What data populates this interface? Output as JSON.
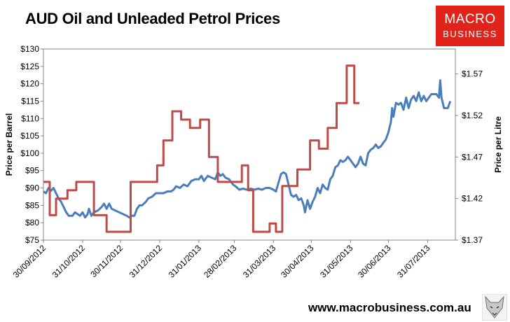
{
  "page": {
    "title": "AUD Oil and Unleaded Petrol Prices",
    "logo_line1": "MACRO",
    "logo_line2": "BUSINESS",
    "url": "www.macrobusiness.com.au"
  },
  "chart_data": {
    "type": "line",
    "title": "AUD Oil and Unleaded Petrol Prices",
    "ylabel": "Price per Barrel",
    "y2label": "Price per Litre",
    "ylim": [
      75,
      130
    ],
    "y2lim": [
      1.37,
      1.6
    ],
    "yticks": [
      "$75",
      "$80",
      "$85",
      "$90",
      "$95",
      "$100",
      "$105",
      "$110",
      "$115",
      "$120",
      "$125",
      "$130"
    ],
    "y2ticks": [
      "$1.37",
      "$1.42",
      "$1.47",
      "$1.52",
      "$1.57"
    ],
    "xlim": [
      "2012-09-30",
      "2013-08-22"
    ],
    "xticks": [
      "30/09/2012",
      "31/10/2012",
      "30/11/2012",
      "31/12/2012",
      "31/01/2013",
      "28/02/2013",
      "31/03/2013",
      "30/04/2013",
      "31/05/2013",
      "30/06/2013",
      "31/07/2013"
    ],
    "grid": false,
    "series": [
      {
        "axis": "left",
        "color": "#4a7ebb",
        "points": [
          [
            "2012-09-30",
            89
          ],
          [
            "2012-10-02",
            88.5
          ],
          [
            "2012-10-04",
            90
          ],
          [
            "2012-10-06",
            89.2
          ],
          [
            "2012-10-08",
            90
          ],
          [
            "2012-10-10",
            88.5
          ],
          [
            "2012-10-12",
            87
          ],
          [
            "2012-10-14",
            86
          ],
          [
            "2012-10-16",
            84.5
          ],
          [
            "2012-10-18",
            83
          ],
          [
            "2012-10-20",
            82
          ],
          [
            "2012-10-23",
            82
          ],
          [
            "2012-10-25",
            83
          ],
          [
            "2012-10-27",
            82.5
          ],
          [
            "2012-10-29",
            82
          ],
          [
            "2012-10-31",
            83
          ],
          [
            "2012-11-02",
            81.5
          ],
          [
            "2012-11-04",
            82.5
          ],
          [
            "2012-11-05",
            84
          ],
          [
            "2012-11-07",
            82
          ],
          [
            "2012-11-09",
            83
          ],
          [
            "2012-11-12",
            83.5
          ],
          [
            "2012-11-15",
            84.5
          ],
          [
            "2012-11-17",
            85.5
          ],
          [
            "2012-11-19",
            84
          ],
          [
            "2012-11-21",
            85.5
          ],
          [
            "2012-11-23",
            84
          ],
          [
            "2012-11-26",
            83.5
          ],
          [
            "2012-11-29",
            83
          ],
          [
            "2012-12-02",
            82.5
          ],
          [
            "2012-12-05",
            82
          ],
          [
            "2012-12-07",
            81.5
          ],
          [
            "2012-12-09",
            82
          ],
          [
            "2012-12-11",
            82
          ],
          [
            "2012-12-13",
            84
          ],
          [
            "2012-12-15",
            85
          ],
          [
            "2012-12-17",
            85
          ],
          [
            "2012-12-20",
            86
          ],
          [
            "2012-12-22",
            87
          ],
          [
            "2012-12-25",
            87.5
          ],
          [
            "2012-12-28",
            88.5
          ],
          [
            "2012-12-31",
            88.5
          ],
          [
            "2013-01-03",
            88.5
          ],
          [
            "2013-01-06",
            89
          ],
          [
            "2013-01-09",
            89
          ],
          [
            "2013-01-11",
            89.5
          ],
          [
            "2013-01-13",
            90.5
          ],
          [
            "2013-01-16",
            90
          ],
          [
            "2013-01-19",
            91
          ],
          [
            "2013-01-22",
            90.5
          ],
          [
            "2013-01-25",
            92
          ],
          [
            "2013-01-28",
            92.5
          ],
          [
            "2013-01-31",
            92.5
          ],
          [
            "2013-02-02",
            93.5
          ],
          [
            "2013-02-04",
            92
          ],
          [
            "2013-02-07",
            93.5
          ],
          [
            "2013-02-10",
            93
          ],
          [
            "2013-02-13",
            92.5
          ],
          [
            "2013-02-15",
            94.5
          ],
          [
            "2013-02-17",
            93.5
          ],
          [
            "2013-02-19",
            94
          ],
          [
            "2013-02-21",
            93
          ],
          [
            "2013-02-24",
            92.5
          ],
          [
            "2013-02-27",
            91
          ],
          [
            "2013-03-01",
            90.5
          ],
          [
            "2013-03-04",
            89.5
          ],
          [
            "2013-03-07",
            89.8
          ],
          [
            "2013-03-10",
            89.5
          ],
          [
            "2013-03-13",
            89.8
          ],
          [
            "2013-03-16",
            89.5
          ],
          [
            "2013-03-19",
            89.8
          ],
          [
            "2013-03-22",
            89.5
          ],
          [
            "2013-03-25",
            90
          ],
          [
            "2013-03-28",
            90
          ],
          [
            "2013-03-31",
            89.5
          ],
          [
            "2013-04-02",
            89
          ],
          [
            "2013-04-04",
            91.5
          ],
          [
            "2013-04-06",
            94
          ],
          [
            "2013-04-08",
            94.5
          ],
          [
            "2013-04-10",
            94
          ],
          [
            "2013-04-12",
            91
          ],
          [
            "2013-04-14",
            88
          ],
          [
            "2013-04-16",
            87.5
          ],
          [
            "2013-04-18",
            88
          ],
          [
            "2013-04-20",
            86.5
          ],
          [
            "2013-04-22",
            87
          ],
          [
            "2013-04-24",
            85
          ],
          [
            "2013-04-25",
            83
          ],
          [
            "2013-04-27",
            86.5
          ],
          [
            "2013-04-29",
            84
          ],
          [
            "2013-05-01",
            86
          ],
          [
            "2013-05-03",
            87.5
          ],
          [
            "2013-05-05",
            90
          ],
          [
            "2013-05-07",
            88.5
          ],
          [
            "2013-05-09",
            91
          ],
          [
            "2013-05-11",
            90
          ],
          [
            "2013-05-13",
            89.5
          ],
          [
            "2013-05-15",
            92.5
          ],
          [
            "2013-05-17",
            93.5
          ],
          [
            "2013-05-19",
            96
          ],
          [
            "2013-05-21",
            96.5
          ],
          [
            "2013-05-23",
            98
          ],
          [
            "2013-05-25",
            97.5
          ],
          [
            "2013-05-27",
            98
          ],
          [
            "2013-05-29",
            99
          ],
          [
            "2013-05-31",
            98
          ],
          [
            "2013-06-02",
            97
          ],
          [
            "2013-06-04",
            96
          ],
          [
            "2013-06-06",
            97
          ],
          [
            "2013-06-08",
            99
          ],
          [
            "2013-06-10",
            97
          ],
          [
            "2013-06-12",
            96.5
          ],
          [
            "2013-06-14",
            100
          ],
          [
            "2013-06-16",
            101
          ],
          [
            "2013-06-18",
            101.5
          ],
          [
            "2013-06-20",
            102.5
          ],
          [
            "2013-06-22",
            101.5
          ],
          [
            "2013-06-24",
            102
          ],
          [
            "2013-06-26",
            103
          ],
          [
            "2013-06-28",
            104
          ],
          [
            "2013-06-30",
            106
          ],
          [
            "2013-07-02",
            109
          ],
          [
            "2013-07-03",
            113
          ],
          [
            "2013-07-04",
            110.5
          ],
          [
            "2013-07-06",
            114.5
          ],
          [
            "2013-07-08",
            114
          ],
          [
            "2013-07-10",
            114.5
          ],
          [
            "2013-07-12",
            112.5
          ],
          [
            "2013-07-14",
            116
          ],
          [
            "2013-07-16",
            113
          ],
          [
            "2013-07-18",
            115.5
          ],
          [
            "2013-07-20",
            116.5
          ],
          [
            "2013-07-22",
            115
          ],
          [
            "2013-07-24",
            117.5
          ],
          [
            "2013-07-26",
            115
          ],
          [
            "2013-07-28",
            116.5
          ],
          [
            "2013-07-30",
            115
          ],
          [
            "2013-08-01",
            116
          ],
          [
            "2013-08-03",
            117
          ],
          [
            "2013-08-05",
            117
          ],
          [
            "2013-08-07",
            117
          ],
          [
            "2013-08-09",
            116
          ],
          [
            "2013-08-10",
            121
          ],
          [
            "2013-08-11",
            116
          ],
          [
            "2013-08-13",
            113
          ],
          [
            "2013-08-16",
            113
          ],
          [
            "2013-08-18",
            115
          ]
        ]
      },
      {
        "axis": "right",
        "color": "#be4b48",
        "points": [
          [
            "2012-09-30",
            1.44
          ],
          [
            "2012-10-05",
            1.44
          ],
          [
            "2012-10-05",
            1.4
          ],
          [
            "2012-10-10",
            1.4
          ],
          [
            "2012-10-10",
            1.42
          ],
          [
            "2012-10-19",
            1.42
          ],
          [
            "2012-10-19",
            1.43
          ],
          [
            "2012-10-26",
            1.43
          ],
          [
            "2012-10-26",
            1.44
          ],
          [
            "2012-11-09",
            1.44
          ],
          [
            "2012-11-09",
            1.4
          ],
          [
            "2012-11-19",
            1.4
          ],
          [
            "2012-11-19",
            1.38
          ],
          [
            "2012-12-08",
            1.38
          ],
          [
            "2012-12-08",
            1.44
          ],
          [
            "2012-12-29",
            1.44
          ],
          [
            "2012-12-29",
            1.46
          ],
          [
            "2013-01-03",
            1.46
          ],
          [
            "2013-01-03",
            1.49
          ],
          [
            "2013-01-10",
            1.49
          ],
          [
            "2013-01-10",
            1.525
          ],
          [
            "2013-01-17",
            1.525
          ],
          [
            "2013-01-17",
            1.515
          ],
          [
            "2013-01-24",
            1.515
          ],
          [
            "2013-01-24",
            1.505
          ],
          [
            "2013-02-01",
            1.505
          ],
          [
            "2013-02-01",
            1.515
          ],
          [
            "2013-02-08",
            1.515
          ],
          [
            "2013-02-08",
            1.47
          ],
          [
            "2013-02-15",
            1.47
          ],
          [
            "2013-02-15",
            1.44
          ],
          [
            "2013-03-06",
            1.44
          ],
          [
            "2013-03-06",
            1.46
          ],
          [
            "2013-03-11",
            1.46
          ],
          [
            "2013-03-11",
            1.43
          ],
          [
            "2013-03-15",
            1.43
          ],
          [
            "2013-03-15",
            1.38
          ],
          [
            "2013-03-28",
            1.38
          ],
          [
            "2013-03-28",
            1.39
          ],
          [
            "2013-04-02",
            1.39
          ],
          [
            "2013-04-02",
            1.38
          ],
          [
            "2013-04-07",
            1.38
          ],
          [
            "2013-04-07",
            1.435
          ],
          [
            "2013-04-19",
            1.435
          ],
          [
            "2013-04-19",
            1.455
          ],
          [
            "2013-04-29",
            1.455
          ],
          [
            "2013-04-29",
            1.49
          ],
          [
            "2013-05-06",
            1.49
          ],
          [
            "2013-05-06",
            1.48
          ],
          [
            "2013-05-13",
            1.48
          ],
          [
            "2013-05-13",
            1.505
          ],
          [
            "2013-05-20",
            1.505
          ],
          [
            "2013-05-20",
            1.535
          ],
          [
            "2013-05-28",
            1.535
          ],
          [
            "2013-05-28",
            1.58
          ],
          [
            "2013-06-03",
            1.58
          ],
          [
            "2013-06-03",
            1.535
          ],
          [
            "2013-06-07",
            1.535
          ]
        ]
      }
    ]
  }
}
